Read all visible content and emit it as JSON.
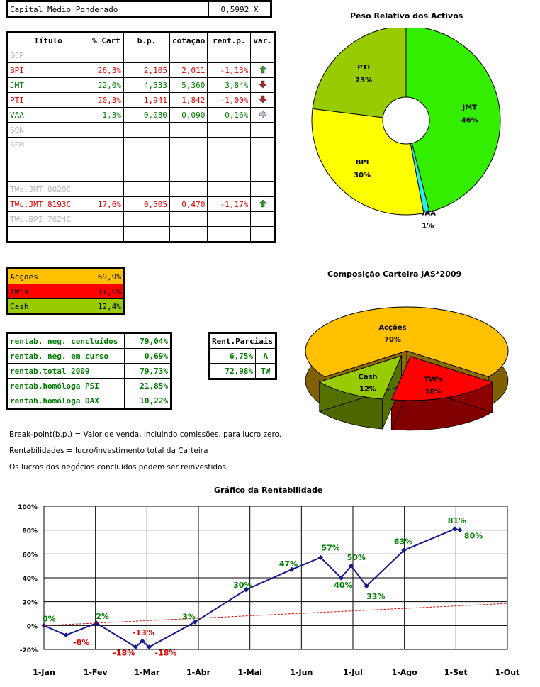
{
  "capital": {
    "label": "Capital Médio Ponderado",
    "value": "0,5992 X"
  },
  "portfolio": {
    "headers": [
      "Título",
      "% Cart",
      "b.p.",
      "cotação",
      "rent.p.",
      "var."
    ],
    "rows": [
      {
        "name": "BCP",
        "cart": "",
        "bp": "",
        "cot": "",
        "rent": "",
        "var": "",
        "color": "gray"
      },
      {
        "name": "BPI",
        "cart": "26,3%",
        "bp": "2,105",
        "cot": "2,011",
        "rent": "-1,13%",
        "var": "up",
        "color": "red"
      },
      {
        "name": "JMT",
        "cart": "22,0%",
        "bp": "4,533",
        "cot": "5,360",
        "rent": "3,84%",
        "var": "down",
        "color": "green"
      },
      {
        "name": "PTI",
        "cart": "20,3%",
        "bp": "1,941",
        "cot": "1,842",
        "rent": "-1,00%",
        "var": "down",
        "color": "red"
      },
      {
        "name": "VAA",
        "cart": "1,3%",
        "bp": "0,080",
        "cot": "0,090",
        "rent": "0,16%",
        "var": "right",
        "color": "green"
      },
      {
        "name": "SON",
        "cart": "",
        "bp": "",
        "cot": "",
        "rent": "",
        "var": "",
        "color": "gray"
      },
      {
        "name": "SEM",
        "cart": "",
        "bp": "",
        "cot": "",
        "rent": "",
        "var": "",
        "color": "gray"
      },
      {
        "name": "",
        "cart": "",
        "bp": "",
        "cot": "",
        "rent": "",
        "var": "",
        "color": "gray"
      },
      {
        "name": "",
        "cart": "",
        "bp": "",
        "cot": "",
        "rent": "",
        "var": "",
        "color": "gray"
      },
      {
        "name": "TWc.JMT 8020C",
        "cart": "",
        "bp": "",
        "cot": "",
        "rent": "",
        "var": "",
        "color": "gray"
      },
      {
        "name": "TWc.JMT 8193C",
        "cart": "17,6%",
        "bp": "0,505",
        "cot": "0,470",
        "rent": "-1,17%",
        "var": "up",
        "color": "red"
      },
      {
        "name": "TWc.BPI 7624C",
        "cart": "",
        "bp": "",
        "cot": "",
        "rent": "",
        "var": "",
        "color": "gray"
      },
      {
        "name": "",
        "cart": "",
        "bp": "",
        "cot": "",
        "rent": "",
        "var": "",
        "color": "gray"
      }
    ]
  },
  "composition": [
    {
      "label": "Acções",
      "value": "69,9%",
      "color": "#ffc000"
    },
    {
      "label": "TW's",
      "value": "17,6%",
      "color": "#ff0000"
    },
    {
      "label": "Cash",
      "value": "12,4%",
      "color": "#99cc00"
    }
  ],
  "returns": [
    {
      "label": "rentab. neg. concluídos",
      "value": "79,04%"
    },
    {
      "label": "rentab. neg. em curso",
      "value": "0,69%"
    },
    {
      "label": "rentab.total 2009",
      "value": "79,73%"
    },
    {
      "label": "rentab.homóloga PSI",
      "value": "21,85%"
    },
    {
      "label": "rentab.homóloga DAX",
      "value": "10,22%"
    }
  ],
  "partial": {
    "header": "Rent.Parciais",
    "rows": [
      {
        "value": "6,75%",
        "code": "A"
      },
      {
        "value": "72,98%",
        "code": "TW"
      }
    ]
  },
  "notes": [
    "Break-point(b.p.) = Valor de venda, incluindo comissões, para lucro zero.",
    "Rentabilidades = lucro/investimento total da Carteira",
    "Os lucros dos negócios concluídos podem ser reinvestidos."
  ],
  "chart_data": [
    {
      "type": "pie",
      "title": "Peso Relativo dos Activos",
      "slices": [
        {
          "label": "JMT",
          "value": 46,
          "text": "46%",
          "color": "#33ee00"
        },
        {
          "label": "VAA",
          "value": 1,
          "text": "1%",
          "color": "#22eeee"
        },
        {
          "label": "BPI",
          "value": 30,
          "text": "30%",
          "color": "#ffff00"
        },
        {
          "label": "PTI",
          "value": 23,
          "text": "23%",
          "color": "#99cc00"
        }
      ]
    },
    {
      "type": "pie",
      "title": "Composição Carteira JAS*2009",
      "slices": [
        {
          "label": "Acções",
          "value": 70,
          "text": "70%",
          "color": "#ffc000"
        },
        {
          "label": "TW's",
          "value": 18,
          "text": "18%",
          "color": "#ff0000"
        },
        {
          "label": "Cash",
          "value": 12,
          "text": "12%",
          "color": "#99cc00"
        }
      ]
    },
    {
      "type": "line",
      "title": "Gráfico da Rentabilidade",
      "x_ticks": [
        "1-Jan",
        "1-Fev",
        "1-Mar",
        "1-Abr",
        "1-Mai",
        "1-Jun",
        "1-Jul",
        "1-Ago",
        "1-Set",
        "1-Out"
      ],
      "y_ticks": [
        "100%",
        "80%",
        "60%",
        "40%",
        "20%",
        "0%",
        "-20%"
      ],
      "ylim": [
        -20,
        100
      ],
      "xlim": [
        "2009-01-01",
        "2009-10-01"
      ],
      "series": [
        {
          "color": "#1a1a8c",
          "points": [
            {
              "x": "2009-01-01",
              "y": 0
            },
            {
              "x": "2009-01-14",
              "y": -8
            },
            {
              "x": "2009-02-01",
              "y": 2
            },
            {
              "x": "2009-02-24",
              "y": -18
            },
            {
              "x": "2009-02-28",
              "y": -13
            },
            {
              "x": "2009-03-04",
              "y": -18
            },
            {
              "x": "2009-03-31",
              "y": 3
            },
            {
              "x": "2009-04-30",
              "y": 30
            },
            {
              "x": "2009-05-27",
              "y": 47
            },
            {
              "x": "2009-06-13",
              "y": 57
            },
            {
              "x": "2009-06-25",
              "y": 40
            },
            {
              "x": "2009-07-01",
              "y": 50
            },
            {
              "x": "2009-07-10",
              "y": 33
            },
            {
              "x": "2009-08-01",
              "y": 63
            },
            {
              "x": "2009-08-31",
              "y": 81
            },
            {
              "x": "2009-09-03",
              "y": 80
            }
          ]
        },
        {
          "color": "#dd0000",
          "style": "dashed",
          "points": [
            {
              "x": "2009-01-01",
              "y": 0
            },
            {
              "x": "2009-10-01",
              "y": 18.5
            }
          ]
        }
      ],
      "data_labels": [
        {
          "x": "2009-01-01",
          "y": 0,
          "text": "0%",
          "color": "green"
        },
        {
          "x": "2009-01-14",
          "y": -8,
          "text": "-8%",
          "color": "red"
        },
        {
          "x": "2009-02-01",
          "y": 2,
          "text": "2%",
          "color": "green"
        },
        {
          "x": "2009-02-24",
          "y": -18,
          "text": "-18%",
          "color": "red"
        },
        {
          "x": "2009-02-28",
          "y": -13,
          "text": "-13%",
          "color": "red"
        },
        {
          "x": "2009-03-04",
          "y": -18,
          "text": "-18%",
          "color": "red"
        },
        {
          "x": "2009-03-31",
          "y": 3,
          "text": "3%",
          "color": "green"
        },
        {
          "x": "2009-04-30",
          "y": 30,
          "text": "30%",
          "color": "green"
        },
        {
          "x": "2009-05-27",
          "y": 47,
          "text": "47%",
          "color": "green"
        },
        {
          "x": "2009-06-13",
          "y": 57,
          "text": "57%",
          "color": "green"
        },
        {
          "x": "2009-06-25",
          "y": 40,
          "text": "40%",
          "color": "green"
        },
        {
          "x": "2009-07-01",
          "y": 50,
          "text": "50%",
          "color": "green"
        },
        {
          "x": "2009-07-10",
          "y": 33,
          "text": "33%",
          "color": "green"
        },
        {
          "x": "2009-08-01",
          "y": 63,
          "text": "63%",
          "color": "green"
        },
        {
          "x": "2009-08-31",
          "y": 81,
          "text": "81%",
          "color": "green"
        },
        {
          "x": "2009-09-03",
          "y": 80,
          "text": "80%",
          "color": "green"
        }
      ]
    }
  ]
}
